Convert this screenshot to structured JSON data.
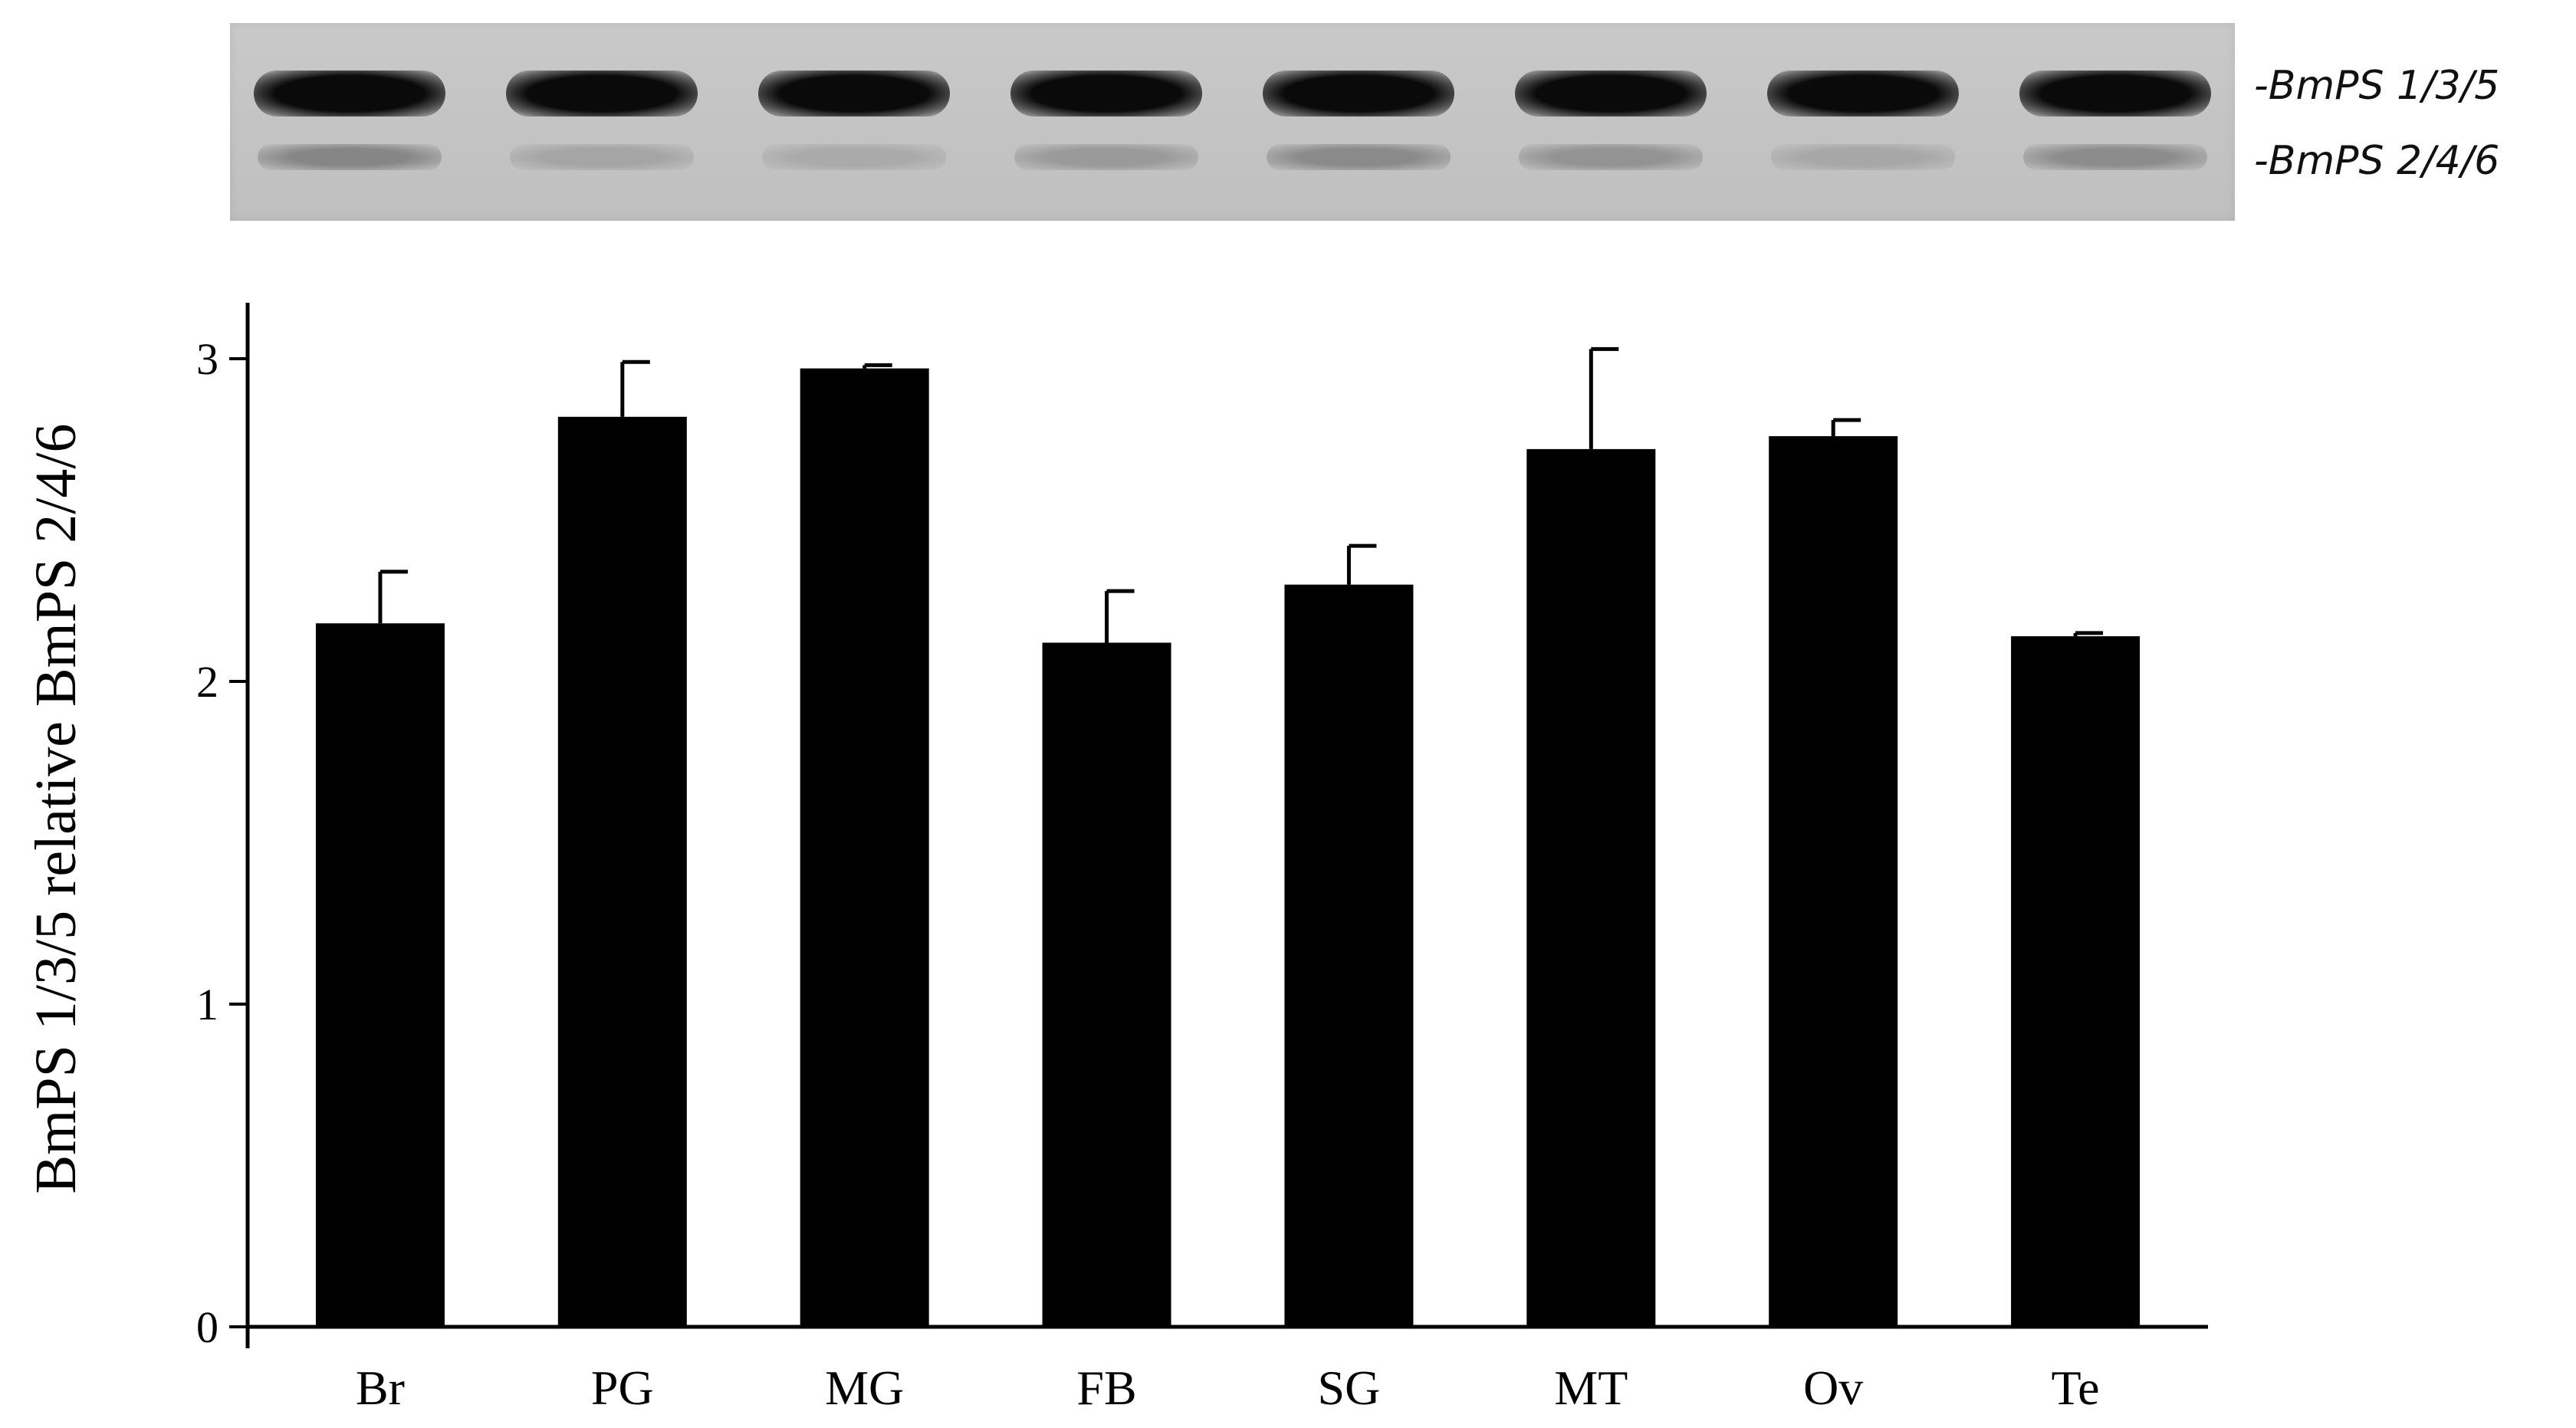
{
  "gel": {
    "band_labels": [
      "-BmPS 1/3/5",
      "-BmPS 2/4/6"
    ]
  },
  "chart_data": {
    "type": "bar",
    "categories": [
      "Br",
      "PG",
      "MG",
      "FB",
      "SG",
      "MT",
      "Ov",
      "Te"
    ],
    "values": [
      2.18,
      2.82,
      2.97,
      2.12,
      2.3,
      2.72,
      2.76,
      2.14
    ],
    "errors": [
      0.16,
      0.17,
      0.01,
      0.16,
      0.12,
      0.31,
      0.05,
      0.01
    ],
    "ylabel": "BmPS 1/3/5 relative BmPS 2/4/6",
    "xlabel": "",
    "ylim": [
      0,
      3.2
    ],
    "yticks": [
      0,
      1,
      2,
      3
    ],
    "bar_color": "#000000",
    "grid": false,
    "legend": "none"
  }
}
